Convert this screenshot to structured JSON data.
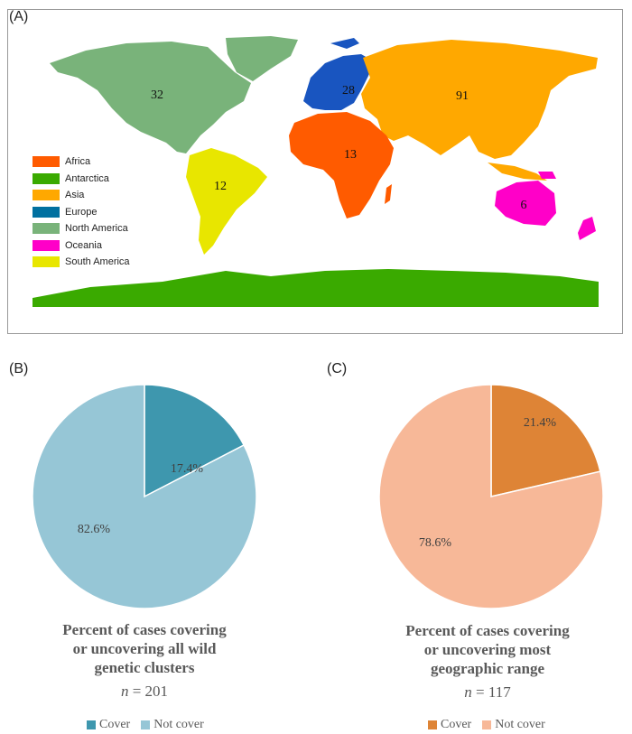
{
  "panels": {
    "a": "(A)",
    "b": "(B)",
    "c": "(C)"
  },
  "colors": {
    "Africa": "#ff5b00",
    "Antarctica": "#3aaa00",
    "Asia": "#ffa800",
    "Europe": "#0070a0",
    "North America": "#79b37a",
    "Oceania": "#ff00c8",
    "South America": "#e8e600",
    "Europe_map": "#1955c0",
    "cover_b": "#3e97ae",
    "notcover_b": "#96c6d6",
    "cover_c": "#de8436",
    "notcover_c": "#f7b898"
  },
  "map": {
    "legend": [
      "Africa",
      "Antarctica",
      "Asia",
      "Europe",
      "North America",
      "Oceania",
      "South America"
    ],
    "counts": [
      {
        "region": "North America",
        "value": "32"
      },
      {
        "region": "Europe",
        "value": "28"
      },
      {
        "region": "Asia",
        "value": "91"
      },
      {
        "region": "Africa",
        "value": "13"
      },
      {
        "region": "South America",
        "value": "12"
      },
      {
        "region": "Oceania",
        "value": "6"
      }
    ]
  },
  "chart_data": [
    {
      "type": "pie",
      "title": "Percent of cases covering or uncovering all wild genetic clusters",
      "title_lines": [
        "Percent of cases covering",
        "or uncovering all wild",
        "genetic clusters"
      ],
      "n_label": "n",
      "n_value": "= 201",
      "labels": [
        "Cover",
        "Not cover"
      ],
      "values": [
        17.4,
        82.6
      ],
      "value_labels": [
        "17.4%",
        "82.6%"
      ],
      "legend_placement": "bottom"
    },
    {
      "type": "pie",
      "title": "Percent of cases covering or uncovering most geographic range",
      "title_lines": [
        "Percent of cases covering",
        "or uncovering most",
        "geographic range"
      ],
      "n_label": "n",
      "n_value": "= 117",
      "labels": [
        "Cover",
        "Not cover"
      ],
      "values": [
        21.4,
        78.6
      ],
      "value_labels": [
        "21.4%",
        "78.6%"
      ],
      "legend_placement": "bottom"
    }
  ]
}
